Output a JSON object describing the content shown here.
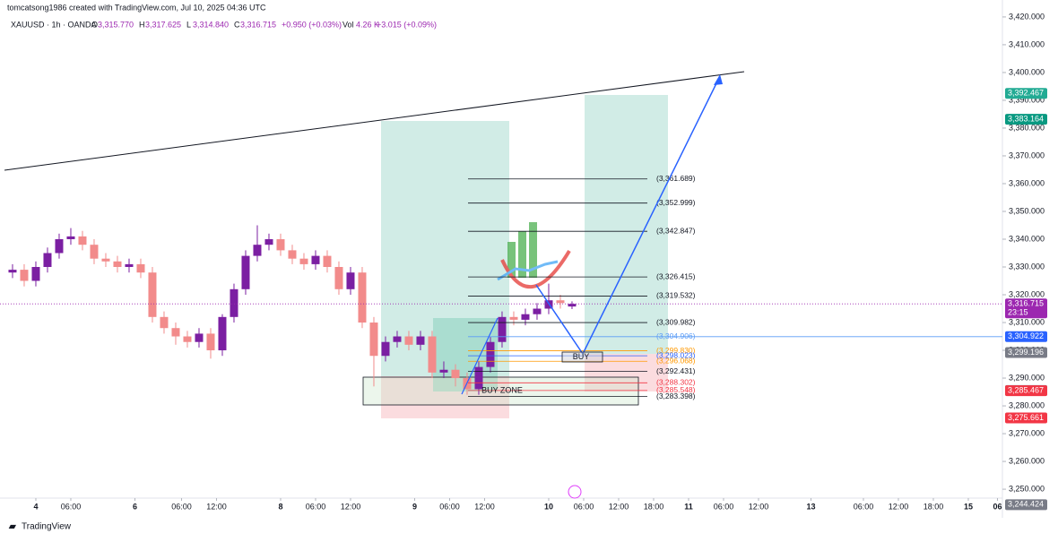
{
  "header": {
    "author": "tomcatsong1986 created with TradingView.com, Jul 10, 2025 04:36 UTC",
    "symbol": "XAUUSD · 1h · OANDA",
    "ohlc": [
      {
        "key": "O",
        "value": "3,315.770"
      },
      {
        "key": "H",
        "value": "3,317.625"
      },
      {
        "key": "L",
        "value": "3,314.840"
      },
      {
        "key": "C",
        "value": "3,316.715"
      }
    ],
    "change": "+0.950 (+0.03%)",
    "volume_key": "Vol",
    "volume": "4.26 K",
    "volume_change": "+3.015 (+0.09%)"
  },
  "footer": "TradingView",
  "chart_data": {
    "type": "candlestick",
    "xlim": [
      -6.15,
      165.85
    ],
    "xticks": [
      {
        "value": 0,
        "label": "4"
      },
      {
        "value": 6,
        "label": "06:00"
      },
      {
        "value": 17,
        "label": "6"
      },
      {
        "value": 25,
        "label": "06:00"
      },
      {
        "value": 31,
        "label": "12:00"
      },
      {
        "value": 42,
        "label": "8"
      },
      {
        "value": 48,
        "label": "06:00"
      },
      {
        "value": 54,
        "label": "12:00"
      },
      {
        "value": 65,
        "label": "9"
      },
      {
        "value": 71,
        "label": "06:00"
      },
      {
        "value": 77,
        "label": "12:00"
      },
      {
        "value": 88,
        "label": "10"
      },
      {
        "value": 94,
        "label": "06:00"
      },
      {
        "value": 100,
        "label": "12:00"
      },
      {
        "value": 106,
        "label": "18:00"
      },
      {
        "value": 112,
        "label": "11"
      },
      {
        "value": 118,
        "label": "06:00"
      },
      {
        "value": 124,
        "label": "12:00"
      },
      {
        "value": 133,
        "label": "13"
      },
      {
        "value": 142,
        "label": "06:00"
      },
      {
        "value": 148,
        "label": "12:00"
      },
      {
        "value": 154,
        "label": "18:00"
      },
      {
        "value": 160,
        "label": "15"
      },
      {
        "value": 165,
        "label": "06"
      }
    ],
    "ylim": [
      3246.8,
      3426.1
    ],
    "yticks": [
      {
        "value": 3250,
        "label": "3,250.000"
      },
      {
        "value": 3260,
        "label": "3,260.000"
      },
      {
        "value": 3270,
        "label": "3,270.000"
      },
      {
        "value": 3280,
        "label": "3,280.000"
      },
      {
        "value": 3290,
        "label": "3,290.000"
      },
      {
        "value": 3300,
        "label": "3,300.000"
      },
      {
        "value": 3310,
        "label": "3,310.000"
      },
      {
        "value": 3320,
        "label": "3,320.000"
      },
      {
        "value": 3330,
        "label": "3,330.000"
      },
      {
        "value": 3340,
        "label": "3,340.000"
      },
      {
        "value": 3350,
        "label": "3,350.000"
      },
      {
        "value": 3360,
        "label": "3,360.000"
      },
      {
        "value": 3370,
        "label": "3,370.000"
      },
      {
        "value": 3380,
        "label": "3,380.000"
      },
      {
        "value": 3390,
        "label": "3,390.000"
      },
      {
        "value": 3400,
        "label": "3,400.000"
      },
      {
        "value": 3410,
        "label": "3,410.000"
      },
      {
        "value": 3420,
        "label": "3,420.000"
      }
    ],
    "up_color": "#7b1fa2",
    "down_color": "#f28b8b",
    "x": [
      -4,
      -2,
      0,
      2,
      4,
      6,
      8,
      10,
      12,
      14,
      16,
      18,
      20,
      22,
      24,
      26,
      28,
      30,
      32,
      34,
      36,
      38,
      40,
      42,
      44,
      46,
      48,
      50,
      52,
      54,
      56,
      58,
      60,
      62,
      64,
      66,
      68,
      70,
      72,
      74,
      76,
      78,
      80,
      82,
      84,
      86,
      88,
      90,
      92
    ],
    "open": [
      3328,
      3329,
      3325,
      3330,
      3335,
      3340,
      3341,
      3338,
      3333,
      3332,
      3330,
      3331,
      3328,
      3312,
      3308,
      3305,
      3303,
      3306,
      3300,
      3312,
      3322,
      3334,
      3338,
      3340,
      3336,
      3333,
      3331,
      3334,
      3330,
      3322,
      3328,
      3310,
      3298,
      3303,
      3305,
      3302,
      3305,
      3292,
      3293,
      3290,
      3286,
      3294,
      3303,
      3312,
      3311,
      3313,
      3315,
      3318,
      3315.77
    ],
    "high": [
      3331,
      3331,
      3332,
      3337,
      3342,
      3344,
      3343,
      3340,
      3335,
      3334,
      3333,
      3333,
      3330,
      3314,
      3310,
      3307,
      3308,
      3308,
      3313,
      3324,
      3336,
      3345,
      3342,
      3342,
      3338,
      3335,
      3336,
      3336,
      3332,
      3330,
      3330,
      3312,
      3305,
      3307,
      3307,
      3307,
      3307,
      3296,
      3295,
      3292,
      3296,
      3305,
      3314,
      3314,
      3315,
      3317,
      3324,
      3320,
      3317.625
    ],
    "low": [
      3326,
      3323,
      3323,
      3328,
      3333,
      3338,
      3336,
      3331,
      3330,
      3328,
      3328,
      3326,
      3310,
      3306,
      3302,
      3301,
      3301,
      3297,
      3298,
      3310,
      3320,
      3332,
      3336,
      3334,
      3331,
      3329,
      3329,
      3328,
      3320,
      3320,
      3308,
      3287,
      3296,
      3301,
      3300,
      3300,
      3290,
      3290,
      3287,
      3284,
      3284,
      3292,
      3301,
      3309,
      3309,
      3311,
      3313,
      3315,
      3314.84
    ],
    "close": [
      3329,
      3325,
      3330,
      3335,
      3340,
      3341,
      3338,
      3333,
      3332,
      3330,
      3331,
      3328,
      3312,
      3308,
      3305,
      3303,
      3306,
      3300,
      3312,
      3322,
      3334,
      3338,
      3340,
      3336,
      3333,
      3331,
      3334,
      3330,
      3322,
      3328,
      3310,
      3298,
      3303,
      3305,
      3302,
      3305,
      3292,
      3293,
      3290,
      3286,
      3294,
      3303,
      3312,
      3311,
      3313,
      3315,
      3318,
      3317,
      3316.715
    ],
    "levels": [
      {
        "value": 3361.689,
        "label": "(3,361.689)",
        "color": "#131722"
      },
      {
        "value": 3352.999,
        "label": "(3,352.999)",
        "color": "#131722"
      },
      {
        "value": 3342.847,
        "label": "(3,342.847)",
        "color": "#131722"
      },
      {
        "value": 3326.415,
        "label": "(3,326.415)",
        "color": "#131722"
      },
      {
        "value": 3319.532,
        "label": "(3,319.532)",
        "color": "#131722"
      },
      {
        "value": 3309.982,
        "label": "(3,309.982)",
        "color": "#131722"
      },
      {
        "value": 3304.906,
        "label": "(3,304.906)",
        "color": "#5b9cf6"
      },
      {
        "value": 3299.83,
        "label": "(3,299.830)",
        "color": "#ff9800"
      },
      {
        "value": 3298.023,
        "label": "(3,298.023)",
        "color": "#2962ff"
      },
      {
        "value": 3296.068,
        "label": "(3,296.068)",
        "color": "#ff9800"
      },
      {
        "value": 3292.431,
        "label": "(3,292.431)",
        "color": "#131722"
      },
      {
        "value": 3288.302,
        "label": "(3,288.302)",
        "color": "#f23645"
      },
      {
        "value": 3285.548,
        "label": "(3,285.548)",
        "color": "#f23645"
      },
      {
        "value": 3283.398,
        "label": "(3,283.398)",
        "color": "#131722"
      }
    ],
    "badges": [
      {
        "value": 3392.467,
        "label": "3,392.467",
        "color": "#22ab94"
      },
      {
        "value": 3383.164,
        "label": "3,383.164",
        "color": "#089981"
      },
      {
        "value": 3316.715,
        "label": "3,316.715",
        "color": "#9c27b0"
      },
      {
        "value": 3304.922,
        "label": "3,304.922",
        "color": "#2962ff"
      },
      {
        "value": 3299.196,
        "label": "3,299.196",
        "color": "#787b86"
      },
      {
        "value": 3285.519,
        "label": "3,285.519",
        "color": "#787b86"
      },
      {
        "value": 3285.467,
        "label": "3,285.467",
        "color": "#f23645"
      },
      {
        "value": 3275.661,
        "label": "3,275.661",
        "color": "#f23645"
      },
      {
        "value": 3244.424,
        "label": "3,244.424",
        "color": "#787b86"
      }
    ],
    "countdown": "23:15",
    "buy_label": "BUY",
    "buy_zone_label": "BUY ZONE"
  }
}
